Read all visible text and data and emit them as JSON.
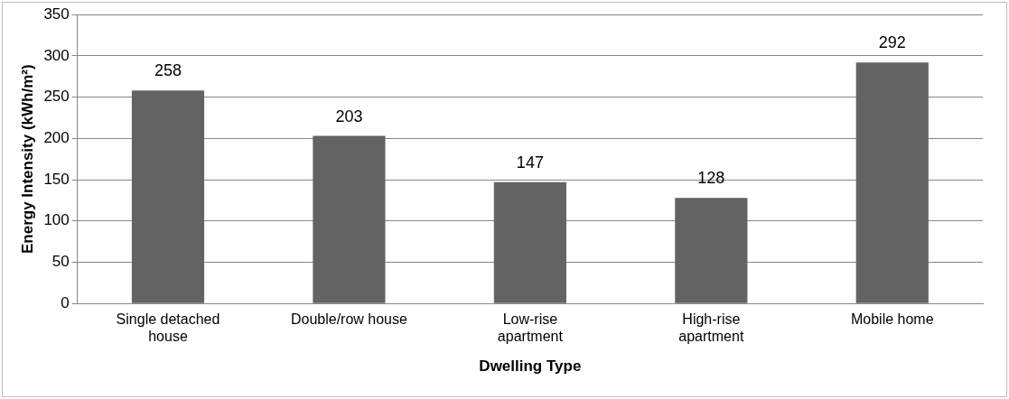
{
  "chart_data": {
    "type": "bar",
    "xlabel": "Dwelling Type",
    "ylabel": "Energy Intensity (kWh/m²)",
    "categories": [
      "Single detached house",
      "Double/row house",
      "Low-rise apartment",
      "High-rise apartment",
      "Mobile home"
    ],
    "values": [
      258,
      203,
      147,
      128,
      292
    ],
    "color": "#636363",
    "ylim": [
      0,
      350
    ],
    "yticks": [
      0,
      50,
      100,
      150,
      200,
      250,
      300,
      350
    ],
    "grid": "y",
    "legend": false,
    "data_labels": true
  }
}
